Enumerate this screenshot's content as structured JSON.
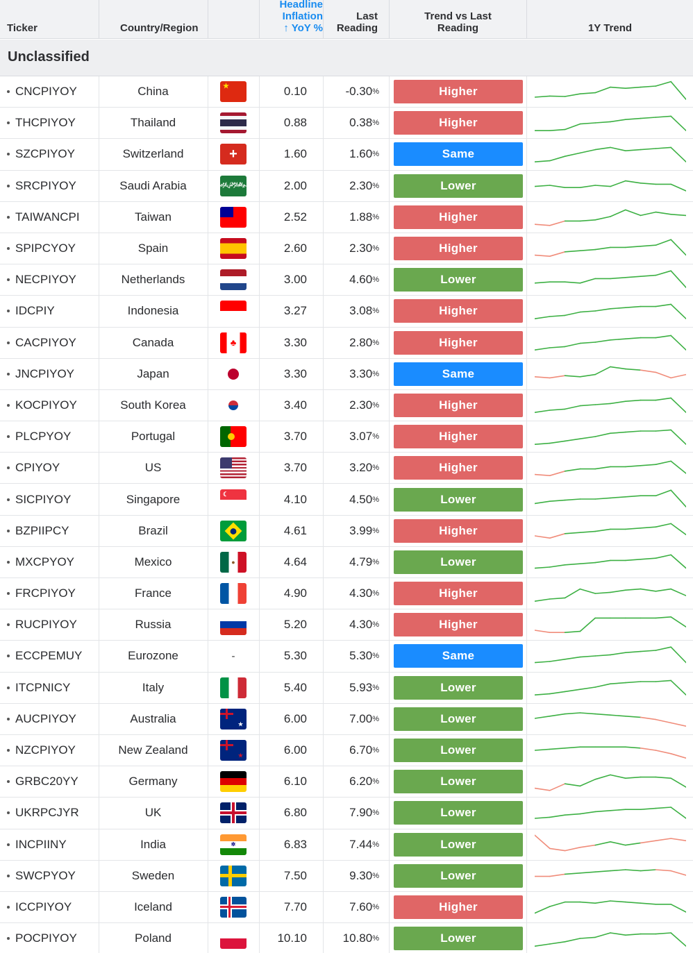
{
  "headers": {
    "ticker": "Ticker",
    "country": "Country/Region",
    "headline_1": "Headline",
    "headline_2": "Inflation",
    "headline_3": "↑ YoY %",
    "last_1": "Last",
    "last_2": "Reading",
    "trend_1": "Trend vs Last",
    "trend_2": "Reading",
    "spark": "1Y Trend"
  },
  "group_label": "Unclassified",
  "colors": {
    "Higher": "#e06666",
    "Lower": "#6aa84f",
    "Same": "#1a8cff",
    "spark_green": "#3cb043",
    "spark_red": "#f08c7a"
  },
  "rows": [
    {
      "ticker": "CNCPIYOY",
      "country": "China",
      "flag": "cn",
      "yoy": "0.10",
      "last": "-0.30",
      "trend": "Higher"
    },
    {
      "ticker": "THCPIYOY",
      "country": "Thailand",
      "flag": "th",
      "yoy": "0.88",
      "last": "0.38",
      "trend": "Higher"
    },
    {
      "ticker": "SZCPIYOY",
      "country": "Switzerland",
      "flag": "ch",
      "yoy": "1.60",
      "last": "1.60",
      "trend": "Same"
    },
    {
      "ticker": "SRCPIYOY",
      "country": "Saudi Arabia",
      "flag": "sa",
      "yoy": "2.00",
      "last": "2.30",
      "trend": "Lower"
    },
    {
      "ticker": "TAIWANCPI",
      "country": "Taiwan",
      "flag": "tw",
      "yoy": "2.52",
      "last": "1.88",
      "trend": "Higher"
    },
    {
      "ticker": "SPIPCYOY",
      "country": "Spain",
      "flag": "es",
      "yoy": "2.60",
      "last": "2.30",
      "trend": "Higher"
    },
    {
      "ticker": "NECPIYOY",
      "country": "Netherlands",
      "flag": "nl",
      "yoy": "3.00",
      "last": "4.60",
      "trend": "Lower"
    },
    {
      "ticker": "IDCPIY",
      "country": "Indonesia",
      "flag": "id",
      "yoy": "3.27",
      "last": "3.08",
      "trend": "Higher"
    },
    {
      "ticker": "CACPIYOY",
      "country": "Canada",
      "flag": "ca",
      "yoy": "3.30",
      "last": "2.80",
      "trend": "Higher"
    },
    {
      "ticker": "JNCPIYOY",
      "country": "Japan",
      "flag": "jp",
      "yoy": "3.30",
      "last": "3.30",
      "trend": "Same"
    },
    {
      "ticker": "KOCPIYOY",
      "country": "South Korea",
      "flag": "kr",
      "yoy": "3.40",
      "last": "2.30",
      "trend": "Higher"
    },
    {
      "ticker": "PLCPYOY",
      "country": "Portugal",
      "flag": "pt",
      "yoy": "3.70",
      "last": "3.07",
      "trend": "Higher"
    },
    {
      "ticker": "CPIYOY",
      "country": "US",
      "flag": "us",
      "yoy": "3.70",
      "last": "3.20",
      "trend": "Higher"
    },
    {
      "ticker": "SICPIYOY",
      "country": "Singapore",
      "flag": "sg",
      "yoy": "4.10",
      "last": "4.50",
      "trend": "Lower"
    },
    {
      "ticker": "BZPIIPCY",
      "country": "Brazil",
      "flag": "br",
      "yoy": "4.61",
      "last": "3.99",
      "trend": "Higher"
    },
    {
      "ticker": "MXCPYOY",
      "country": "Mexico",
      "flag": "mx",
      "yoy": "4.64",
      "last": "4.79",
      "trend": "Lower"
    },
    {
      "ticker": "FRCPIYOY",
      "country": "France",
      "flag": "fr",
      "yoy": "4.90",
      "last": "4.30",
      "trend": "Higher"
    },
    {
      "ticker": "RUCPIYOY",
      "country": "Russia",
      "flag": "ru",
      "yoy": "5.20",
      "last": "4.30",
      "trend": "Higher"
    },
    {
      "ticker": "ECCPEMUY",
      "country": "Eurozone",
      "flag": "none",
      "flag_text": "-",
      "yoy": "5.30",
      "last": "5.30",
      "trend": "Same"
    },
    {
      "ticker": "ITCPNICY",
      "country": "Italy",
      "flag": "it",
      "yoy": "5.40",
      "last": "5.93",
      "trend": "Lower"
    },
    {
      "ticker": "AUCPIYOY",
      "country": "Australia",
      "flag": "au",
      "yoy": "6.00",
      "last": "7.00",
      "trend": "Lower"
    },
    {
      "ticker": "NZCPIYOY",
      "country": "New Zealand",
      "flag": "nz",
      "yoy": "6.00",
      "last": "6.70",
      "trend": "Lower"
    },
    {
      "ticker": "GRBC20YY",
      "country": "Germany",
      "flag": "de",
      "yoy": "6.10",
      "last": "6.20",
      "trend": "Lower"
    },
    {
      "ticker": "UKRPCJYR",
      "country": "UK",
      "flag": "gb",
      "yoy": "6.80",
      "last": "7.90",
      "trend": "Lower"
    },
    {
      "ticker": "INCPIINY",
      "country": "India",
      "flag": "in",
      "yoy": "6.83",
      "last": "7.44",
      "trend": "Lower"
    },
    {
      "ticker": "SWCPYOY",
      "country": "Sweden",
      "flag": "se",
      "yoy": "7.50",
      "last": "9.30",
      "trend": "Lower"
    },
    {
      "ticker": "ICCPIYOY",
      "country": "Iceland",
      "flag": "is",
      "yoy": "7.70",
      "last": "7.60",
      "trend": "Higher"
    },
    {
      "ticker": "POCPIYOY",
      "country": "Poland",
      "flag": "pl",
      "yoy": "10.10",
      "last": "10.80",
      "trend": "Lower"
    }
  ],
  "percent_suffix": "%"
}
